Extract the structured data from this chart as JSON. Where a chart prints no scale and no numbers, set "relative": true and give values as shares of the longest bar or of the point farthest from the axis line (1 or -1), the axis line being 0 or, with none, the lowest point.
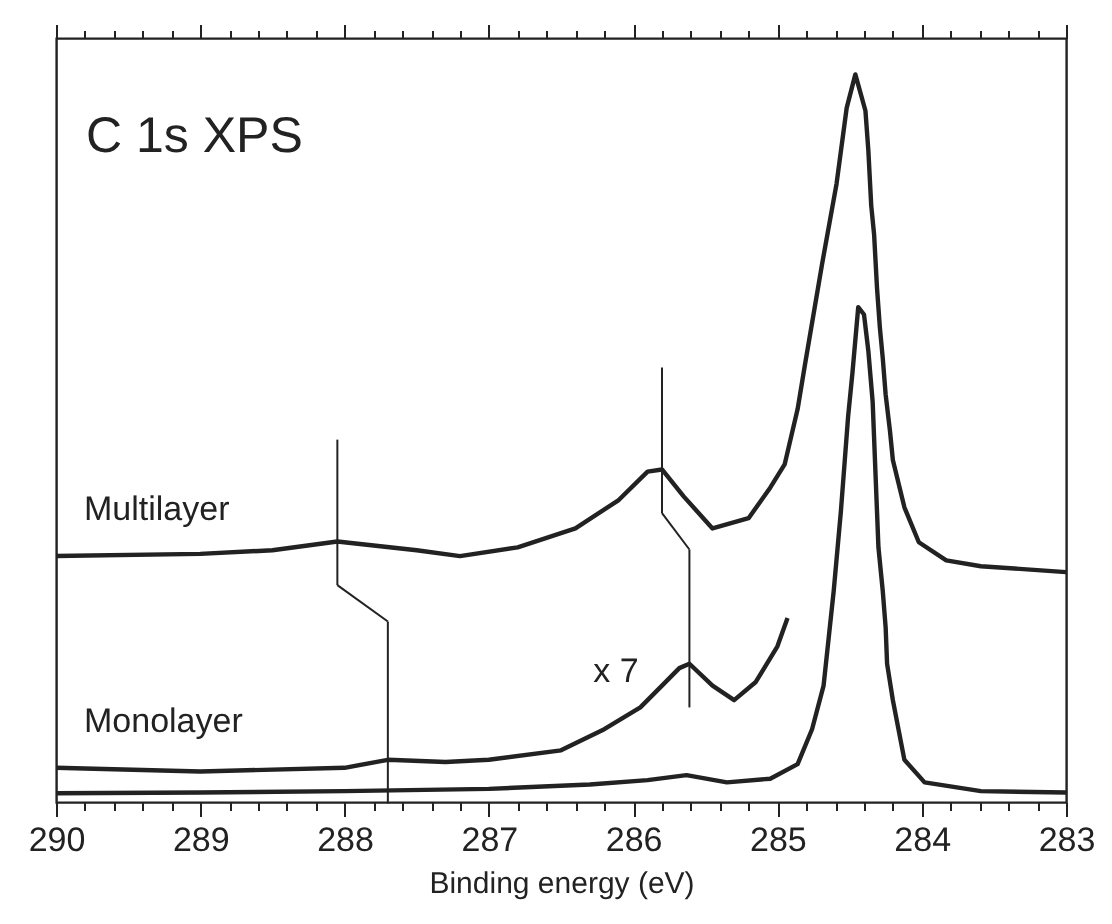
{
  "chart_data": {
    "type": "line",
    "title": "C 1s XPS",
    "xlabel": "Binding energy (eV)",
    "relative": true,
    "xlim": [
      290,
      283
    ],
    "xticks": [
      290,
      289,
      288,
      287,
      286,
      285,
      284,
      283
    ],
    "grid": false,
    "line_style": "solid",
    "annotations": [
      "x 7"
    ],
    "series": [
      {
        "name": "Multilayer",
        "color": "#222222",
        "x": [
          290,
          289,
          288.5,
          288.05,
          287.5,
          287.2,
          286.8,
          286.4,
          286.1,
          285.9,
          285.8,
          285.65,
          285.45,
          285.2,
          285.05,
          284.95,
          284.86,
          284.81,
          284.69,
          284.59,
          284.52,
          284.46,
          284.39,
          284.37,
          284.35,
          284.33,
          284.31,
          284.29,
          284.27,
          284.25,
          284.22,
          284.2,
          284.12,
          284.02,
          283.83,
          283.59,
          283
        ],
        "values": [
          0.338,
          0.341,
          0.346,
          0.358,
          0.346,
          0.338,
          0.35,
          0.376,
          0.415,
          0.454,
          0.457,
          0.42,
          0.376,
          0.39,
          0.432,
          0.464,
          0.54,
          0.6,
          0.74,
          0.85,
          0.954,
          1,
          0.95,
          0.896,
          0.82,
          0.78,
          0.707,
          0.652,
          0.61,
          0.56,
          0.51,
          0.47,
          0.405,
          0.357,
          0.332,
          0.324,
          0.316
        ]
      },
      {
        "name": "Monolayer",
        "color": "#222222",
        "x": [
          290,
          289,
          288,
          287.7,
          287.3,
          287,
          286.5,
          286.2,
          285.95,
          285.8,
          285.68,
          285.61,
          285.45,
          285.3,
          285.15,
          285,
          284.93
        ],
        "values": [
          0.047,
          0.042,
          0.047,
          0.058,
          0.055,
          0.058,
          0.071,
          0.1,
          0.13,
          0.16,
          0.184,
          0.19,
          0.16,
          0.14,
          0.165,
          0.214,
          0.253
        ]
      },
      {
        "color": "#222222",
        "x": [
          290,
          289,
          288,
          287,
          286.3,
          285.9,
          285.63,
          285.35,
          285.05,
          284.86,
          284.76,
          284.68,
          284.61,
          284.56,
          284.51,
          284.48,
          284.44,
          284.4,
          284.37,
          284.34,
          284.31,
          284.3,
          284.27,
          284.25,
          284.24,
          284.2,
          284.12,
          283.98,
          283.59,
          283
        ],
        "values": [
          0.012,
          0.013,
          0.015,
          0.018,
          0.024,
          0.03,
          0.037,
          0.027,
          0.032,
          0.052,
          0.1,
          0.16,
          0.29,
          0.4,
          0.53,
          0.59,
          0.68,
          0.67,
          0.62,
          0.55,
          0.4,
          0.35,
          0.29,
          0.24,
          0.19,
          0.14,
          0.058,
          0.027,
          0.015,
          0.013
        ]
      }
    ]
  }
}
